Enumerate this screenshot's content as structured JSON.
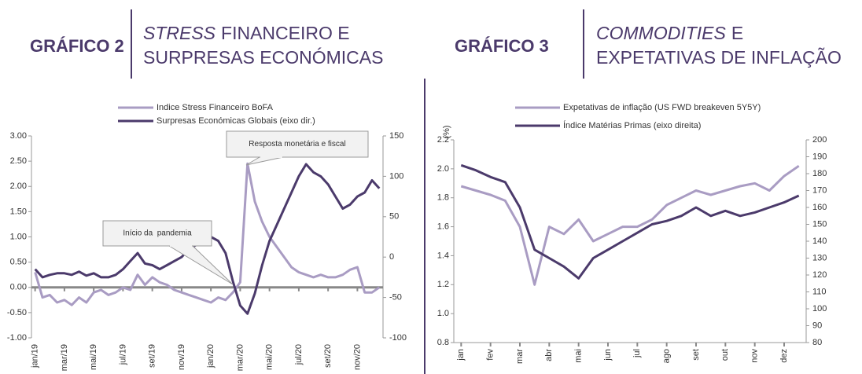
{
  "chart_data": [
    {
      "type": "line",
      "label": "GRÁFICO 2",
      "title": {
        "italic": "STRESS",
        "line1": "FINANCEIRO E",
        "line2": "SURPRESAS ECONÓMICAS"
      },
      "categories": [
        "jan/19",
        null,
        null,
        null,
        "mar/19",
        null,
        null,
        null,
        "mai/19",
        null,
        null,
        null,
        "jul/19",
        null,
        null,
        null,
        "set/19",
        null,
        null,
        null,
        "nov/19",
        null,
        null,
        null,
        "jan/20",
        null,
        null,
        null,
        "mar/20",
        null,
        null,
        null,
        "mai/20",
        null,
        null,
        null,
        "jul/20",
        null,
        null,
        null,
        "set/20",
        null,
        null,
        null,
        "nov/20",
        null,
        null,
        null
      ],
      "series": [
        {
          "name": "Indice Stress Financeiro BoFA",
          "color": "#a99cc3",
          "values": [
            0.3,
            -0.2,
            -0.15,
            -0.3,
            -0.25,
            -0.35,
            -0.2,
            -0.3,
            -0.1,
            -0.05,
            -0.15,
            -0.1,
            0.0,
            -0.05,
            0.25,
            0.05,
            0.2,
            0.1,
            0.05,
            -0.05,
            -0.1,
            -0.15,
            -0.2,
            -0.25,
            -0.3,
            -0.2,
            -0.25,
            -0.1,
            0.1,
            2.45,
            1.7,
            1.3,
            1.0,
            0.8,
            0.6,
            0.4,
            0.3,
            0.25,
            0.2,
            0.25,
            0.2,
            0.2,
            0.25,
            0.35,
            0.4,
            -0.1,
            -0.1,
            0.0
          ]
        },
        {
          "name": "Surpresas Económicas Globais (eixo dir.)",
          "color": "#4b3a6b",
          "axis": "y2",
          "values": [
            -15,
            -25,
            -22,
            -20,
            -20,
            -22,
            -18,
            -23,
            -20,
            -25,
            -25,
            -22,
            -15,
            -5,
            5,
            -8,
            -10,
            -15,
            -10,
            -5,
            0,
            10,
            15,
            20,
            25,
            20,
            5,
            -30,
            -60,
            -70,
            -45,
            -10,
            20,
            40,
            60,
            80,
            100,
            115,
            105,
            100,
            90,
            75,
            60,
            65,
            75,
            80,
            95,
            85
          ]
        }
      ],
      "ylim": [
        -1.0,
        3.0
      ],
      "yticks": [
        {
          "value": -1.0,
          "label": "-1.00"
        },
        {
          "value": -0.5,
          "label": "-0.50"
        },
        {
          "value": 0.0,
          "label": "0.00"
        },
        {
          "value": 0.5,
          "label": "0.50"
        },
        {
          "value": 1.0,
          "label": "1.00"
        },
        {
          "value": 1.5,
          "label": "1.50"
        },
        {
          "value": 2.0,
          "label": "2.00"
        },
        {
          "value": 2.5,
          "label": "2.50"
        },
        {
          "value": 3.0,
          "label": "3.00"
        }
      ],
      "y2lim": [
        -100,
        150
      ],
      "y2ticks": [
        -100,
        -50,
        0,
        50,
        100,
        150
      ],
      "annotations": [
        "Início da  pandemia",
        "Resposta monetária e fiscal"
      ]
    },
    {
      "type": "line",
      "label": "GRÁFICO 3",
      "title": {
        "italic": "COMMODITIES",
        "line1": "E",
        "line2": "EXPETATIVAS DE INFLAÇÃO"
      },
      "y_label": "(%)",
      "categories": [
        "jan",
        null,
        "fev",
        null,
        "mar",
        null,
        "abr",
        null,
        "mai",
        null,
        "jun",
        null,
        "jul",
        null,
        "ago",
        null,
        "set",
        null,
        "out",
        null,
        "nov",
        null,
        "dez",
        null
      ],
      "series": [
        {
          "name": "Expetativas de inflação (US FWD breakeven 5Y5Y)",
          "color": "#a99cc3",
          "values": [
            1.88,
            1.85,
            1.82,
            1.78,
            1.6,
            1.2,
            1.6,
            1.55,
            1.65,
            1.5,
            1.55,
            1.6,
            1.6,
            1.65,
            1.75,
            1.8,
            1.85,
            1.82,
            1.85,
            1.88,
            1.9,
            1.85,
            1.95,
            2.02
          ]
        },
        {
          "name": "Índice Matérias Primas (eixo direita)",
          "color": "#4b3a6b",
          "axis": "y2",
          "values": [
            185,
            182,
            178,
            175,
            160,
            135,
            130,
            125,
            118,
            130,
            135,
            140,
            145,
            150,
            152,
            155,
            160,
            155,
            158,
            155,
            157,
            160,
            163,
            167
          ]
        }
      ],
      "ylim": [
        0.8,
        2.2
      ],
      "yticks": [
        0.8,
        {
          "value": 1.0,
          "label": "1.0"
        },
        1.2,
        1.4,
        1.6,
        1.8,
        {
          "value": 2.0,
          "label": "2.0"
        },
        2.2
      ],
      "y2lim": [
        80,
        200
      ],
      "y2ticks": [
        80,
        90,
        100,
        110,
        120,
        130,
        140,
        150,
        160,
        170,
        180,
        190,
        200
      ]
    }
  ]
}
